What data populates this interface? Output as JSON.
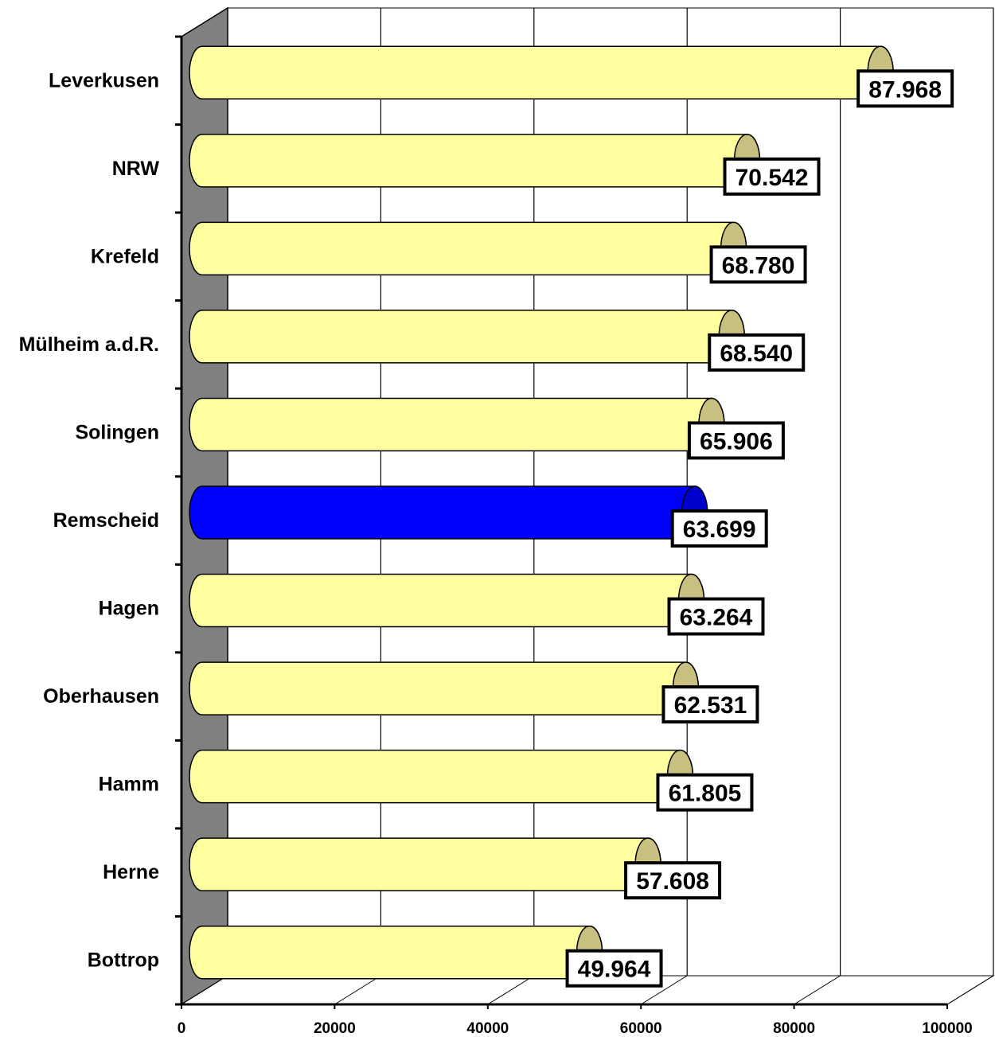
{
  "chart_data": {
    "type": "bar",
    "orientation": "horizontal",
    "style": "3d-cylinder",
    "categories": [
      "Leverkusen",
      "NRW",
      "Krefeld",
      "Mülheim a.d.R.",
      "Solingen",
      "Remscheid",
      "Hagen",
      "Oberhausen",
      "Hamm",
      "Herne",
      "Bottrop"
    ],
    "values": [
      87968,
      70542,
      68780,
      68540,
      65906,
      63699,
      63264,
      62531,
      61805,
      57608,
      49964
    ],
    "value_labels": [
      "87.968",
      "70.542",
      "68.780",
      "68.540",
      "65.906",
      "63.699",
      "63.264",
      "62.531",
      "61.805",
      "57.608",
      "49.964"
    ],
    "highlight_category": "Remscheid",
    "xlim": [
      0,
      100000
    ],
    "x_ticks": [
      "0",
      "20000",
      "40000",
      "60000",
      "80000",
      "100000"
    ],
    "gridlines": true,
    "legend": "none",
    "colors": {
      "bar": "#ffffa0",
      "bar_shadow": "#e8e890",
      "bar_end": "#c8c080",
      "highlight": "#0000ff",
      "highlight_end": "#0000cc",
      "side_wall": "#808080"
    }
  }
}
